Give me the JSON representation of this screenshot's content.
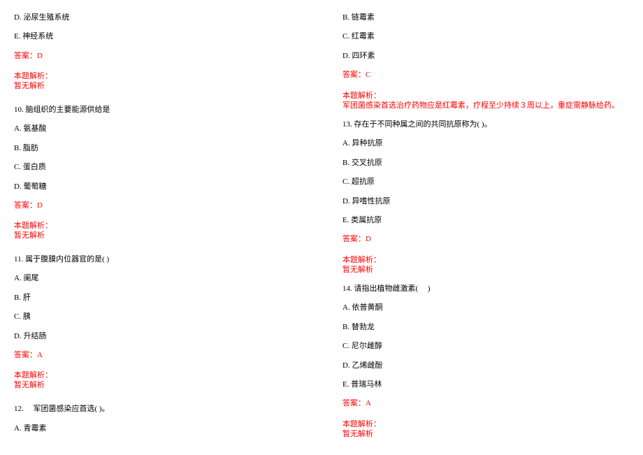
{
  "left": {
    "q9_optD": "D. 泌尿生殖系统",
    "q9_optE": "E. 神经系统",
    "q9_answer": "答案：D",
    "q9_analysis_label": "本题解析：",
    "q9_analysis_text": "暂无解析",
    "q10_stem": "10. 脑组织的主要能源供给是",
    "q10_optA": "A. 氨基酸",
    "q10_optB": "B. 脂肪",
    "q10_optC": "C. 蛋白质",
    "q10_optD": "D. 葡萄糖",
    "q10_answer": "答案：D",
    "q10_analysis_label": "本题解析：",
    "q10_analysis_text": "暂无解析",
    "q11_stem": "11. 属于腹膜内位器官的是( )",
    "q11_optA": "A. 阑尾",
    "q11_optB": "B. 肝",
    "q11_optC": "C. 胰",
    "q11_optD": "D. 升结肠",
    "q11_answer": "答案：A",
    "q11_analysis_label": "本题解析：",
    "q11_analysis_text": "暂无解析",
    "q12_stem": "12. 　军团菌感染应首选( )。",
    "q12_optA": "A. 青霉素"
  },
  "right": {
    "q12_optB": "B. 链霉素",
    "q12_optC": "C. 红霉素",
    "q12_optD": "D. 四环素",
    "q12_answer": "答案：C",
    "q12_analysis_label": "本题解析：",
    "q12_analysis_text": "军团菌感染首选治疗药物应是红霉素，疗程至少持续３周以上，重症需静脉给药。",
    "q13_stem": "13. 存在于不同种属之间的共同抗原称为( )。",
    "q13_optA": "A. 异种抗原",
    "q13_optB": "B. 交叉抗原",
    "q13_optC": "C. 超抗原",
    "q13_optD": "D. 异嗜性抗原",
    "q13_optE": "E. 类属抗原",
    "q13_answer": "答案：D",
    "q13_analysis_label": "本题解析：",
    "q13_analysis_text": "暂无解析",
    "q14_stem": "14. 请指出植物雌激素( 　)",
    "q14_optA": "A. 依普黄酮",
    "q14_optB": "B. 替勃龙",
    "q14_optC": "C. 尼尔雌醇",
    "q14_optD": "D. 乙烯雌酚",
    "q14_optE": "E. 普瑞马林",
    "q14_answer": "答案：A",
    "q14_analysis_label": "本题解析：",
    "q14_analysis_text": "暂无解析"
  }
}
